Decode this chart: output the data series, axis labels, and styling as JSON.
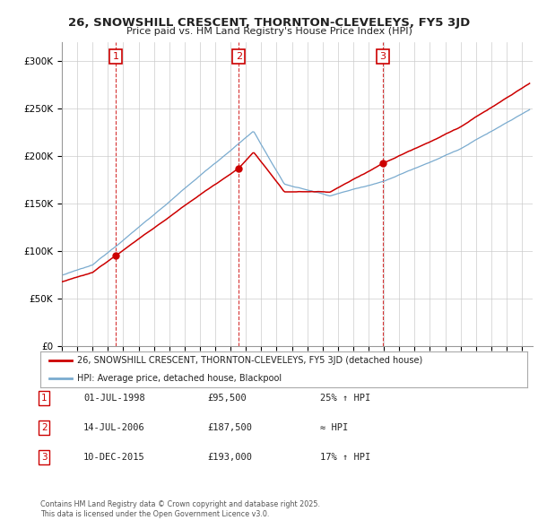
{
  "title_line1": "26, SNOWSHILL CRESCENT, THORNTON-CLEVELEYS, FY5 3JD",
  "title_line2": "Price paid vs. HM Land Registry's House Price Index (HPI)",
  "xlim_start": 1995.0,
  "xlim_end": 2025.7,
  "ylim_min": 0,
  "ylim_max": 320000,
  "sale_dates": [
    1998.5,
    2006.54,
    2015.94
  ],
  "sale_prices": [
    95500,
    187500,
    193000
  ],
  "sale_labels": [
    "1",
    "2",
    "3"
  ],
  "legend_red": "26, SNOWSHILL CRESCENT, THORNTON-CLEVELEYS, FY5 3JD (detached house)",
  "legend_blue": "HPI: Average price, detached house, Blackpool",
  "table_data": [
    [
      "1",
      "01-JUL-1998",
      "£95,500",
      "25% ↑ HPI"
    ],
    [
      "2",
      "14-JUL-2006",
      "£187,500",
      "≈ HPI"
    ],
    [
      "3",
      "10-DEC-2015",
      "£193,000",
      "17% ↑ HPI"
    ]
  ],
  "footer": "Contains HM Land Registry data © Crown copyright and database right 2025.\nThis data is licensed under the Open Government Licence v3.0.",
  "red_color": "#cc0000",
  "blue_color": "#7aabcf",
  "background_color": "#ffffff",
  "grid_color": "#cccccc",
  "yticks": [
    0,
    50000,
    100000,
    150000,
    200000,
    250000,
    300000
  ]
}
